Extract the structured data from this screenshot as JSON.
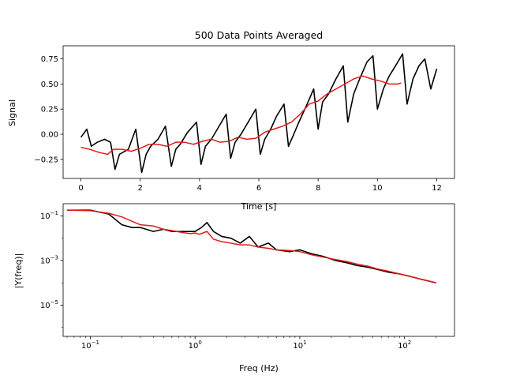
{
  "chart_data": [
    {
      "type": "line",
      "title": "500 Data Points Averaged",
      "xlabel": "Time [s]",
      "ylabel": "Signal",
      "xlim": [
        -0.6,
        12.6
      ],
      "ylim": [
        -0.44,
        0.88
      ],
      "x_ticks": [
        0,
        2,
        4,
        6,
        8,
        10,
        12
      ],
      "y_ticks": [
        -0.25,
        0.0,
        0.25,
        0.5,
        0.75
      ],
      "y_tick_labels": [
        "−0.25",
        "0.00",
        "0.25",
        "0.50",
        "0.75"
      ],
      "grid": false,
      "series": [
        {
          "color": "#000000",
          "x": [
            0,
            0.2,
            0.35,
            0.55,
            0.8,
            1.0,
            1.15,
            1.3,
            1.6,
            1.85,
            2.05,
            2.2,
            2.35,
            2.6,
            2.85,
            3.05,
            3.2,
            3.35,
            3.6,
            3.9,
            4.05,
            4.2,
            4.4,
            4.6,
            4.9,
            5.05,
            5.2,
            5.4,
            5.6,
            5.9,
            6.05,
            6.2,
            6.4,
            6.6,
            6.85,
            7.0,
            7.15,
            7.35,
            7.6,
            7.85,
            8.0,
            8.15,
            8.35,
            8.6,
            8.85,
            9.0,
            9.2,
            9.4,
            9.65,
            9.85,
            10.0,
            10.2,
            10.4,
            10.65,
            10.85,
            11.0,
            11.2,
            11.4,
            11.6,
            11.8,
            12.0
          ],
          "y": [
            -0.03,
            0.05,
            -0.12,
            -0.08,
            -0.05,
            -0.08,
            -0.35,
            -0.2,
            -0.15,
            0.05,
            -0.38,
            -0.2,
            -0.12,
            -0.05,
            0.08,
            -0.32,
            -0.15,
            -0.1,
            0.02,
            0.12,
            -0.3,
            -0.12,
            -0.05,
            0.05,
            0.2,
            -0.24,
            -0.08,
            0.0,
            0.1,
            0.25,
            -0.2,
            -0.05,
            0.05,
            0.18,
            0.3,
            -0.12,
            -0.02,
            0.12,
            0.28,
            0.45,
            0.05,
            0.32,
            0.4,
            0.55,
            0.68,
            0.12,
            0.4,
            0.55,
            0.72,
            0.78,
            0.25,
            0.45,
            0.58,
            0.7,
            0.8,
            0.3,
            0.55,
            0.68,
            0.75,
            0.45,
            0.65
          ]
        },
        {
          "color": "#e41a1c",
          "x": [
            0,
            0.3,
            0.6,
            0.9,
            1.1,
            1.4,
            1.7,
            2.0,
            2.3,
            2.6,
            2.9,
            3.2,
            3.5,
            3.8,
            4.1,
            4.4,
            4.7,
            5.0,
            5.3,
            5.6,
            5.9,
            6.2,
            6.5,
            6.8,
            7.1,
            7.4,
            7.7,
            8.0,
            8.3,
            8.6,
            8.9,
            9.2,
            9.5,
            9.8,
            10.1,
            10.4,
            10.7,
            10.8
          ],
          "y": [
            -0.13,
            -0.15,
            -0.18,
            -0.2,
            -0.15,
            -0.15,
            -0.17,
            -0.14,
            -0.1,
            -0.1,
            -0.12,
            -0.08,
            -0.08,
            -0.1,
            -0.07,
            -0.05,
            -0.08,
            -0.07,
            -0.03,
            -0.05,
            -0.04,
            0.02,
            0.05,
            0.08,
            0.12,
            0.2,
            0.3,
            0.33,
            0.4,
            0.45,
            0.5,
            0.55,
            0.58,
            0.55,
            0.53,
            0.5,
            0.5,
            0.51
          ]
        }
      ]
    },
    {
      "type": "line",
      "title": "",
      "xlabel": "Freq (Hz)",
      "ylabel": "|Y(freq)|",
      "xscale": "log",
      "yscale": "log",
      "xlim": [
        0.055,
        300
      ],
      "ylim": [
        4e-07,
        0.35
      ],
      "x_ticks": [
        0.1,
        1,
        10,
        100
      ],
      "x_tick_labels": [
        [
          "10",
          "−1"
        ],
        [
          "10",
          "0"
        ],
        [
          "10",
          "1"
        ],
        [
          "10",
          "2"
        ]
      ],
      "y_ticks": [
        1e-05,
        0.001,
        0.1
      ],
      "y_tick_labels": [
        [
          "10",
          "−5"
        ],
        [
          "10",
          "−3"
        ],
        [
          "10",
          "−1"
        ]
      ],
      "grid": false,
      "series": [
        {
          "color": "#000000",
          "x": [
            0.06,
            0.1,
            0.15,
            0.2,
            0.25,
            0.3,
            0.4,
            0.5,
            0.6,
            0.75,
            0.9,
            1.0,
            1.15,
            1.3,
            1.5,
            1.8,
            2.2,
            2.7,
            3.3,
            4,
            5,
            6,
            8,
            10,
            13,
            17,
            22,
            28,
            35,
            45,
            55,
            70,
            90,
            110,
            140,
            170,
            200
          ],
          "y": [
            0.18,
            0.18,
            0.12,
            0.04,
            0.03,
            0.03,
            0.02,
            0.025,
            0.02,
            0.02,
            0.02,
            0.02,
            0.03,
            0.05,
            0.02,
            0.012,
            0.01,
            0.006,
            0.012,
            0.004,
            0.006,
            0.003,
            0.0025,
            0.003,
            0.002,
            0.0015,
            0.001,
            0.0008,
            0.0006,
            0.0005,
            0.0004,
            0.0003,
            0.00025,
            0.0002,
            0.00015,
            0.00012,
            0.0001
          ]
        },
        {
          "color": "#e41a1c",
          "x": [
            0.06,
            0.1,
            0.15,
            0.2,
            0.3,
            0.4,
            0.5,
            0.6,
            0.75,
            0.9,
            1.0,
            1.1,
            1.3,
            1.5,
            1.8,
            2.2,
            2.7,
            3.3,
            4,
            5,
            6,
            8,
            10,
            13,
            17,
            22,
            28,
            35,
            45,
            55,
            70,
            90,
            110,
            140,
            170,
            200
          ],
          "y": [
            0.18,
            0.17,
            0.13,
            0.09,
            0.04,
            0.035,
            0.025,
            0.022,
            0.018,
            0.016,
            0.017,
            0.015,
            0.02,
            0.009,
            0.007,
            0.006,
            0.005,
            0.005,
            0.004,
            0.0035,
            0.003,
            0.0028,
            0.0025,
            0.0018,
            0.0014,
            0.0011,
            0.0009,
            0.0007,
            0.00055,
            0.00042,
            0.00033,
            0.00025,
            0.0002,
            0.00015,
            0.00012,
            0.0001
          ]
        }
      ]
    }
  ]
}
